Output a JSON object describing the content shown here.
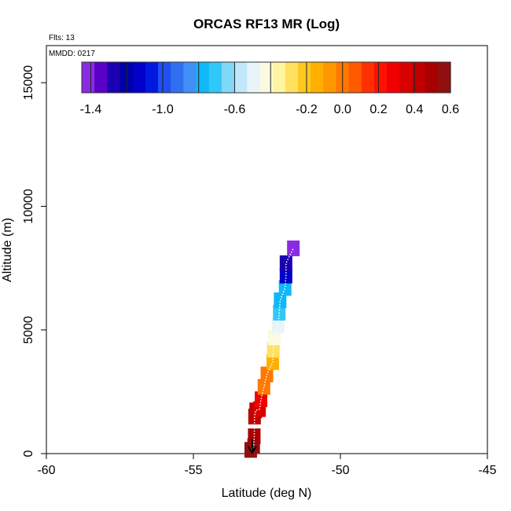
{
  "chart_data": {
    "type": "scatter",
    "title": "ORCAS RF13 MR (Log)",
    "flights_label": "Flts: 13",
    "date_label": "MMDD: 0217",
    "xlabel": "Latitude (deg N)",
    "ylabel": "Altitude (m)",
    "xlim": [
      -60,
      -45
    ],
    "ylim": [
      0,
      16500
    ],
    "x_ticks": [
      -60,
      -55,
      -50,
      -45
    ],
    "x_tick_labels": [
      "-60",
      "-55",
      "-50",
      "-45"
    ],
    "y_ticks": [
      0,
      5000,
      10000,
      15000
    ],
    "y_tick_labels": [
      "0",
      "5000",
      "10000",
      "15000"
    ],
    "colorbar": {
      "min": -1.45,
      "max": 0.6,
      "tick_values": [
        -1.4,
        -1.0,
        -0.6,
        -0.2,
        0.0,
        0.2,
        0.4,
        0.6
      ],
      "tick_labels": [
        "-1.4",
        "-1.0",
        "-0.6",
        "-0.2",
        "0.0",
        "0.2",
        "0.4",
        "0.6"
      ],
      "colors": [
        "#8a2be2",
        "#5a00c8",
        "#1a00b0",
        "#0000a8",
        "#0000c8",
        "#0018e0",
        "#2050f0",
        "#3070f0",
        "#4090f8",
        "#10b8f8",
        "#30c8f8",
        "#80d8f8",
        "#c0e8fa",
        "#e8f4f8",
        "#fafae0",
        "#fff5a0",
        "#ffe060",
        "#ffc820",
        "#ffb000",
        "#ff9800",
        "#ff7800",
        "#ff5a00",
        "#ff3000",
        "#ff1000",
        "#f00000",
        "#d80000",
        "#c00000",
        "#a80000",
        "#901010"
      ]
    },
    "points": [
      {
        "lat": -53.05,
        "alt": 150,
        "value": 0.6
      },
      {
        "lat": -52.95,
        "alt": 300,
        "value": 0.55
      },
      {
        "lat": -52.93,
        "alt": 700,
        "value": 0.5
      },
      {
        "lat": -52.92,
        "alt": 1500,
        "value": 0.45
      },
      {
        "lat": -52.88,
        "alt": 1750,
        "value": 0.4
      },
      {
        "lat": -52.75,
        "alt": 1800,
        "value": 0.38
      },
      {
        "lat": -52.7,
        "alt": 2200,
        "value": 0.3
      },
      {
        "lat": -52.6,
        "alt": 2700,
        "value": 0.0
      },
      {
        "lat": -52.5,
        "alt": 3200,
        "value": -0.02
      },
      {
        "lat": -52.3,
        "alt": 3700,
        "value": -0.15
      },
      {
        "lat": -52.28,
        "alt": 4200,
        "value": -0.3
      },
      {
        "lat": -52.25,
        "alt": 4700,
        "value": -0.4
      },
      {
        "lat": -52.12,
        "alt": 5200,
        "value": -0.5
      },
      {
        "lat": -52.08,
        "alt": 5700,
        "value": -0.72
      },
      {
        "lat": -52.05,
        "alt": 6200,
        "value": -0.78
      },
      {
        "lat": -51.88,
        "alt": 6700,
        "value": -0.8
      },
      {
        "lat": -51.85,
        "alt": 7200,
        "value": -1.15
      },
      {
        "lat": -51.85,
        "alt": 7700,
        "value": -1.3
      },
      {
        "lat": -51.6,
        "alt": 8300,
        "value": -1.45
      }
    ],
    "start_marker": {
      "lat": -53.0,
      "alt_from": 600,
      "alt_to": 0
    }
  }
}
